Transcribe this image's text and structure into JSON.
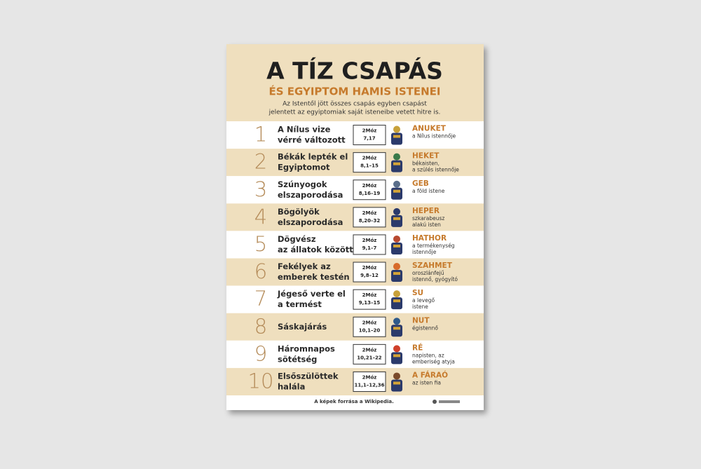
{
  "header": {
    "title": "A TÍZ CSAPÁS",
    "subtitle": "ÉS EGYIPTOM HAMIS ISTENEI",
    "intro": [
      "Az Istentől jött összes csapás egyben csapást",
      "jelentett az egyiptomiak saját isteneibe vetett hitre is."
    ]
  },
  "rows": [
    {
      "number": "1",
      "plague": [
        "A Nílus vize",
        "vérré változott"
      ],
      "ref": [
        "2Móz",
        "7,17"
      ],
      "god": "ANUKET",
      "desc": [
        "a Nílus istennője"
      ]
    },
    {
      "number": "2",
      "plague": [
        "Békák lepték el",
        "Egyiptomot"
      ],
      "ref": [
        "2Móz",
        "8,1–15"
      ],
      "god": "HEKET",
      "desc": [
        "békaisten,",
        "a szülés istennője"
      ]
    },
    {
      "number": "3",
      "plague": [
        "Szúnyogok",
        "elszaporodása"
      ],
      "ref": [
        "2Móz",
        "8,16–19"
      ],
      "god": "GEB",
      "desc": [
        "a föld istene"
      ]
    },
    {
      "number": "4",
      "plague": [
        "Bögölyök",
        "elszaporodása"
      ],
      "ref": [
        "2Móz",
        "8,20–32"
      ],
      "god": "HEPER",
      "desc": [
        "szkarabeusz",
        "alakú isten"
      ]
    },
    {
      "number": "5",
      "plague": [
        "Dögvész",
        "az állatok között"
      ],
      "ref": [
        "2Móz",
        "9,1–7"
      ],
      "god": "HATHOR",
      "desc": [
        "a termékenység",
        "istennője"
      ]
    },
    {
      "number": "6",
      "plague": [
        "Fekélyek az",
        "emberek testén"
      ],
      "ref": [
        "2Móz",
        "9,8–12"
      ],
      "god": "SZAHMET",
      "desc": [
        "oroszlánfejű",
        "istennő, gyógyító"
      ]
    },
    {
      "number": "7",
      "plague": [
        "Jégeső verte el",
        "a termést"
      ],
      "ref": [
        "2Móz",
        "9,13–15"
      ],
      "god": "SU",
      "desc": [
        "a levegő",
        "istene"
      ]
    },
    {
      "number": "8",
      "plague": [
        "Sáskajárás"
      ],
      "ref": [
        "2Móz",
        "10,1–20"
      ],
      "god": "NUT",
      "desc": [
        "égistennő"
      ]
    },
    {
      "number": "9",
      "plague": [
        "Háromnapos",
        "sötétség"
      ],
      "ref": [
        "2Móz",
        "10,21–22"
      ],
      "god": "RÉ",
      "desc": [
        "napisten, az",
        "emberiség atyja"
      ]
    },
    {
      "number": "10",
      "plague": [
        "Elsőszülöttek",
        "halála"
      ],
      "ref": [
        "2Móz",
        "11,1–12,36"
      ],
      "god": "A FÁRAÓ",
      "desc": [
        "az isten fia"
      ]
    }
  ],
  "footer": {
    "source": "A képek forrása a Wikipedia."
  }
}
